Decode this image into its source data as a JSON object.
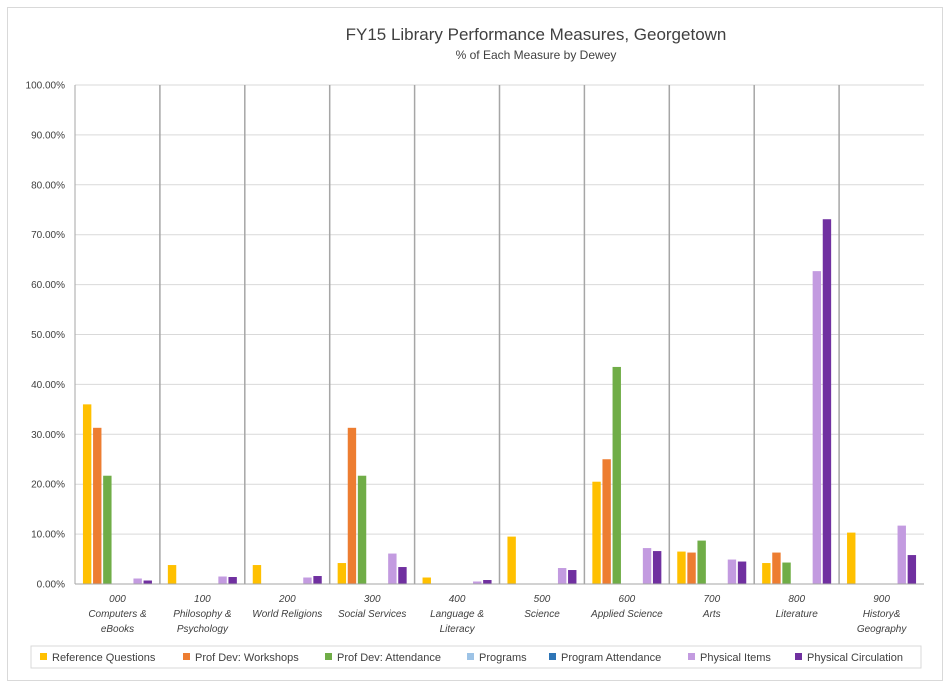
{
  "chart_data": {
    "type": "bar",
    "title": "FY15 Library Performance Measures, Georgetown",
    "subtitle": "% of Each Measure by Dewey",
    "xlabel": "",
    "ylabel": "",
    "ylim": [
      0,
      100
    ],
    "yticks": [
      "0.00%",
      "10.00%",
      "20.00%",
      "30.00%",
      "40.00%",
      "50.00%",
      "60.00%",
      "70.00%",
      "80.00%",
      "90.00%",
      "100.00%"
    ],
    "categories": [
      {
        "code": "000",
        "lines": [
          "Computers &",
          "eBooks"
        ]
      },
      {
        "code": "100",
        "lines": [
          "Philosophy &",
          "Psychology"
        ]
      },
      {
        "code": "200",
        "lines": [
          "World Religions"
        ]
      },
      {
        "code": "300",
        "lines": [
          "Social Services"
        ]
      },
      {
        "code": "400",
        "lines": [
          "Language &",
          "Literacy"
        ]
      },
      {
        "code": "500",
        "lines": [
          "Science"
        ]
      },
      {
        "code": "600",
        "lines": [
          "Applied Science"
        ]
      },
      {
        "code": "700",
        "lines": [
          "Arts"
        ]
      },
      {
        "code": "800",
        "lines": [
          "Literature"
        ]
      },
      {
        "code": "900",
        "lines": [
          "History&",
          "Geography"
        ]
      }
    ],
    "series": [
      {
        "name": "Reference Questions",
        "color": "#FFC000",
        "values": [
          36.0,
          3.8,
          3.8,
          4.2,
          1.3,
          9.5,
          20.5,
          6.5,
          4.2,
          10.3
        ]
      },
      {
        "name": "Prof Dev: Workshops",
        "color": "#ED7D31",
        "values": [
          31.3,
          0,
          0,
          31.3,
          0,
          0,
          25.0,
          6.3,
          6.3,
          0
        ]
      },
      {
        "name": "Prof Dev: Attendance",
        "color": "#70AD47",
        "values": [
          21.7,
          0,
          0,
          21.7,
          0,
          0,
          43.5,
          8.7,
          4.3,
          0
        ]
      },
      {
        "name": "Programs",
        "color": "#9DC3E6",
        "values": [
          0,
          0,
          0,
          0,
          0,
          0,
          0,
          0,
          0,
          0
        ]
      },
      {
        "name": "Program Attendance",
        "color": "#2E75B6",
        "values": [
          0,
          0,
          0,
          0,
          0,
          0,
          0,
          0,
          0,
          0
        ]
      },
      {
        "name": "Physical Items",
        "color": "#C39BE0",
        "values": [
          1.1,
          1.5,
          1.3,
          6.1,
          0.5,
          3.2,
          7.2,
          4.9,
          62.7,
          11.7
        ]
      },
      {
        "name": "Physical Circulation",
        "color": "#7030A0",
        "values": [
          0.7,
          1.4,
          1.6,
          3.4,
          0.8,
          2.8,
          6.6,
          4.5,
          73.1,
          5.8
        ]
      }
    ],
    "legend_position": "bottom",
    "grid": true
  }
}
